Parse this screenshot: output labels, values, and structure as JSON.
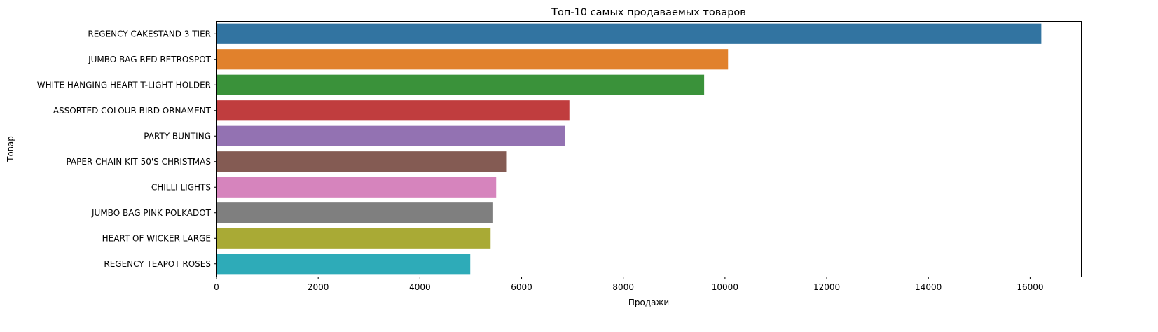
{
  "chart_data": {
    "type": "bar",
    "orientation": "horizontal",
    "title": "Топ-10 самых продаваемых товаров",
    "xlabel": "Продажи",
    "ylabel": "Товар",
    "categories": [
      "REGENCY CAKESTAND 3 TIER",
      "JUMBO BAG RED RETROSPOT",
      "WHITE HANGING HEART T-LIGHT HOLDER",
      "ASSORTED COLOUR BIRD ORNAMENT",
      "PARTY BUNTING",
      "PAPER CHAIN KIT 50'S CHRISTMAS ",
      "CHILLI LIGHTS",
      "JUMBO BAG PINK POLKADOT",
      "HEART OF WICKER LARGE",
      "REGENCY TEAPOT ROSES "
    ],
    "values": [
      16220,
      10060,
      9590,
      6940,
      6860,
      5710,
      5500,
      5440,
      5390,
      4990
    ],
    "colors": [
      "#3274a1",
      "#e1812c",
      "#3a923a",
      "#c03d3e",
      "#9372b2",
      "#845b53",
      "#d684bd",
      "#7f7f7f",
      "#a9aa35",
      "#2eabb8"
    ],
    "xlim": [
      0,
      17000
    ],
    "xticks": [
      0,
      2000,
      4000,
      6000,
      8000,
      10000,
      12000,
      14000,
      16000
    ],
    "xtick_labels": [
      "0",
      "2000",
      "4000",
      "6000",
      "8000",
      "10000",
      "12000",
      "14000",
      "16000"
    ],
    "grid": false,
    "legend": "none"
  }
}
